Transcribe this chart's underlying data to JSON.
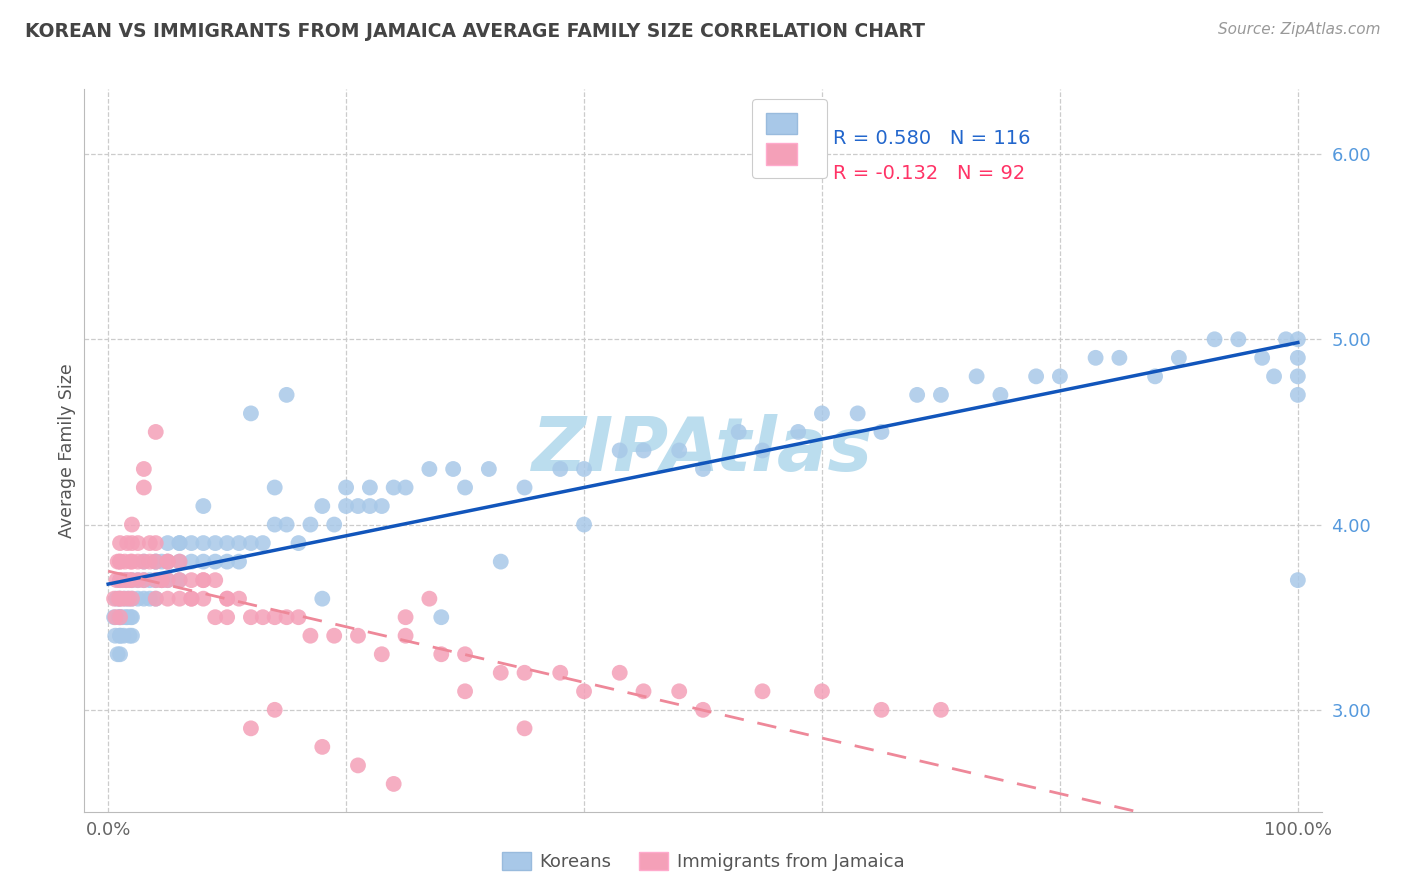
{
  "title": "KOREAN VS IMMIGRANTS FROM JAMAICA AVERAGE FAMILY SIZE CORRELATION CHART",
  "source": "Source: ZipAtlas.com",
  "ylabel": "Average Family Size",
  "ylim": [
    2.45,
    6.35
  ],
  "xlim": [
    -0.02,
    1.02
  ],
  "yticks": [
    3.0,
    4.0,
    5.0,
    6.0
  ],
  "xticks": [
    0.0,
    0.2,
    0.4,
    0.6,
    0.8,
    1.0
  ],
  "xtick_labels": [
    "0.0%",
    "",
    "",
    "",
    "",
    "100.0%"
  ],
  "korean_color": "#A8C8E8",
  "jamaican_color": "#F4A0B8",
  "korean_line_color": "#1155BB",
  "jamaican_line_color": "#EE8899",
  "korean_R": 0.58,
  "korean_N": 116,
  "jamaican_R": -0.132,
  "jamaican_N": 92,
  "watermark_text": "ZIPAtlas",
  "watermark_color": "#BBDDEE",
  "background_color": "#FFFFFF",
  "grid_color": "#CCCCCC",
  "yaxis_color": "#5599DD",
  "title_color": "#444444",
  "source_color": "#999999",
  "legend_text_blue": "#2266CC",
  "legend_text_pink": "#FF3366",
  "legend_text_dark": "#333333",
  "korean_scatter_x": [
    0.005,
    0.006,
    0.007,
    0.008,
    0.009,
    0.01,
    0.01,
    0.01,
    0.01,
    0.01,
    0.01,
    0.01,
    0.012,
    0.013,
    0.014,
    0.015,
    0.015,
    0.016,
    0.017,
    0.018,
    0.019,
    0.02,
    0.02,
    0.02,
    0.02,
    0.025,
    0.025,
    0.03,
    0.03,
    0.03,
    0.035,
    0.035,
    0.04,
    0.04,
    0.04,
    0.045,
    0.045,
    0.05,
    0.05,
    0.05,
    0.06,
    0.06,
    0.06,
    0.07,
    0.07,
    0.08,
    0.08,
    0.09,
    0.09,
    0.1,
    0.1,
    0.11,
    0.11,
    0.12,
    0.13,
    0.14,
    0.15,
    0.16,
    0.17,
    0.18,
    0.19,
    0.2,
    0.21,
    0.22,
    0.23,
    0.24,
    0.25,
    0.27,
    0.29,
    0.3,
    0.32,
    0.35,
    0.38,
    0.4,
    0.43,
    0.45,
    0.48,
    0.5,
    0.53,
    0.55,
    0.58,
    0.6,
    0.63,
    0.65,
    0.68,
    0.7,
    0.73,
    0.75,
    0.78,
    0.8,
    0.83,
    0.85,
    0.88,
    0.9,
    0.93,
    0.95,
    0.97,
    0.98,
    0.99,
    1.0,
    1.0,
    1.0,
    1.0,
    1.0,
    0.15,
    0.2,
    0.12,
    0.08,
    0.06,
    0.04,
    0.14,
    0.18,
    0.22,
    0.28,
    0.33,
    0.4
  ],
  "korean_scatter_y": [
    3.5,
    3.4,
    3.6,
    3.3,
    3.5,
    3.7,
    3.4,
    3.5,
    3.3,
    3.6,
    3.4,
    3.5,
    3.5,
    3.4,
    3.6,
    3.5,
    3.7,
    3.5,
    3.6,
    3.4,
    3.5,
    3.7,
    3.5,
    3.6,
    3.4,
    3.6,
    3.7,
    3.7,
    3.6,
    3.8,
    3.7,
    3.6,
    3.8,
    3.7,
    3.6,
    3.8,
    3.7,
    3.8,
    3.7,
    3.9,
    3.8,
    3.7,
    3.9,
    3.8,
    3.9,
    3.8,
    3.9,
    3.8,
    3.9,
    3.9,
    3.8,
    3.9,
    3.8,
    3.9,
    3.9,
    4.0,
    4.0,
    3.9,
    4.0,
    4.1,
    4.0,
    4.1,
    4.1,
    4.2,
    4.1,
    4.2,
    4.2,
    4.3,
    4.3,
    4.2,
    4.3,
    4.2,
    4.3,
    4.3,
    4.4,
    4.4,
    4.4,
    4.3,
    4.5,
    4.4,
    4.5,
    4.6,
    4.6,
    4.5,
    4.7,
    4.7,
    4.8,
    4.7,
    4.8,
    4.8,
    4.9,
    4.9,
    4.8,
    4.9,
    5.0,
    5.0,
    4.9,
    4.8,
    5.0,
    5.0,
    4.9,
    4.8,
    4.7,
    3.7,
    4.7,
    4.2,
    4.6,
    4.1,
    3.9,
    3.8,
    4.2,
    3.6,
    4.1,
    3.5,
    3.8,
    4.0
  ],
  "jamaican_scatter_x": [
    0.005,
    0.006,
    0.007,
    0.008,
    0.009,
    0.01,
    0.01,
    0.01,
    0.01,
    0.01,
    0.01,
    0.012,
    0.013,
    0.014,
    0.015,
    0.016,
    0.017,
    0.018,
    0.019,
    0.02,
    0.02,
    0.02,
    0.02,
    0.025,
    0.025,
    0.03,
    0.03,
    0.03,
    0.035,
    0.04,
    0.04,
    0.04,
    0.045,
    0.05,
    0.05,
    0.05,
    0.06,
    0.06,
    0.07,
    0.07,
    0.08,
    0.08,
    0.09,
    0.1,
    0.1,
    0.11,
    0.12,
    0.13,
    0.14,
    0.15,
    0.17,
    0.19,
    0.21,
    0.23,
    0.25,
    0.28,
    0.3,
    0.33,
    0.35,
    0.38,
    0.4,
    0.43,
    0.45,
    0.48,
    0.5,
    0.55,
    0.6,
    0.65,
    0.7,
    0.02,
    0.025,
    0.03,
    0.035,
    0.04,
    0.045,
    0.05,
    0.06,
    0.07,
    0.08,
    0.09,
    0.1,
    0.12,
    0.14,
    0.16,
    0.18,
    0.21,
    0.24,
    0.27,
    0.3,
    0.35,
    0.04,
    0.25
  ],
  "jamaican_scatter_y": [
    3.6,
    3.5,
    3.7,
    3.8,
    3.6,
    3.7,
    3.8,
    3.5,
    3.9,
    3.6,
    3.8,
    3.7,
    3.6,
    3.8,
    3.7,
    3.9,
    3.6,
    3.7,
    3.8,
    3.7,
    3.8,
    3.6,
    3.9,
    3.7,
    3.8,
    3.8,
    4.3,
    3.7,
    3.9,
    3.8,
    3.7,
    3.9,
    3.7,
    3.7,
    3.8,
    3.6,
    3.8,
    3.6,
    3.7,
    3.6,
    3.7,
    3.6,
    3.5,
    3.6,
    3.5,
    3.6,
    3.5,
    3.5,
    3.5,
    3.5,
    3.4,
    3.4,
    3.4,
    3.3,
    3.4,
    3.3,
    3.3,
    3.2,
    3.2,
    3.2,
    3.1,
    3.2,
    3.1,
    3.1,
    3.0,
    3.1,
    3.1,
    3.0,
    3.0,
    4.0,
    3.9,
    4.2,
    3.8,
    3.6,
    3.7,
    3.8,
    3.7,
    3.6,
    3.7,
    3.7,
    3.6,
    2.9,
    3.0,
    3.5,
    2.8,
    2.7,
    2.6,
    3.6,
    3.1,
    2.9,
    4.5,
    3.5
  ]
}
